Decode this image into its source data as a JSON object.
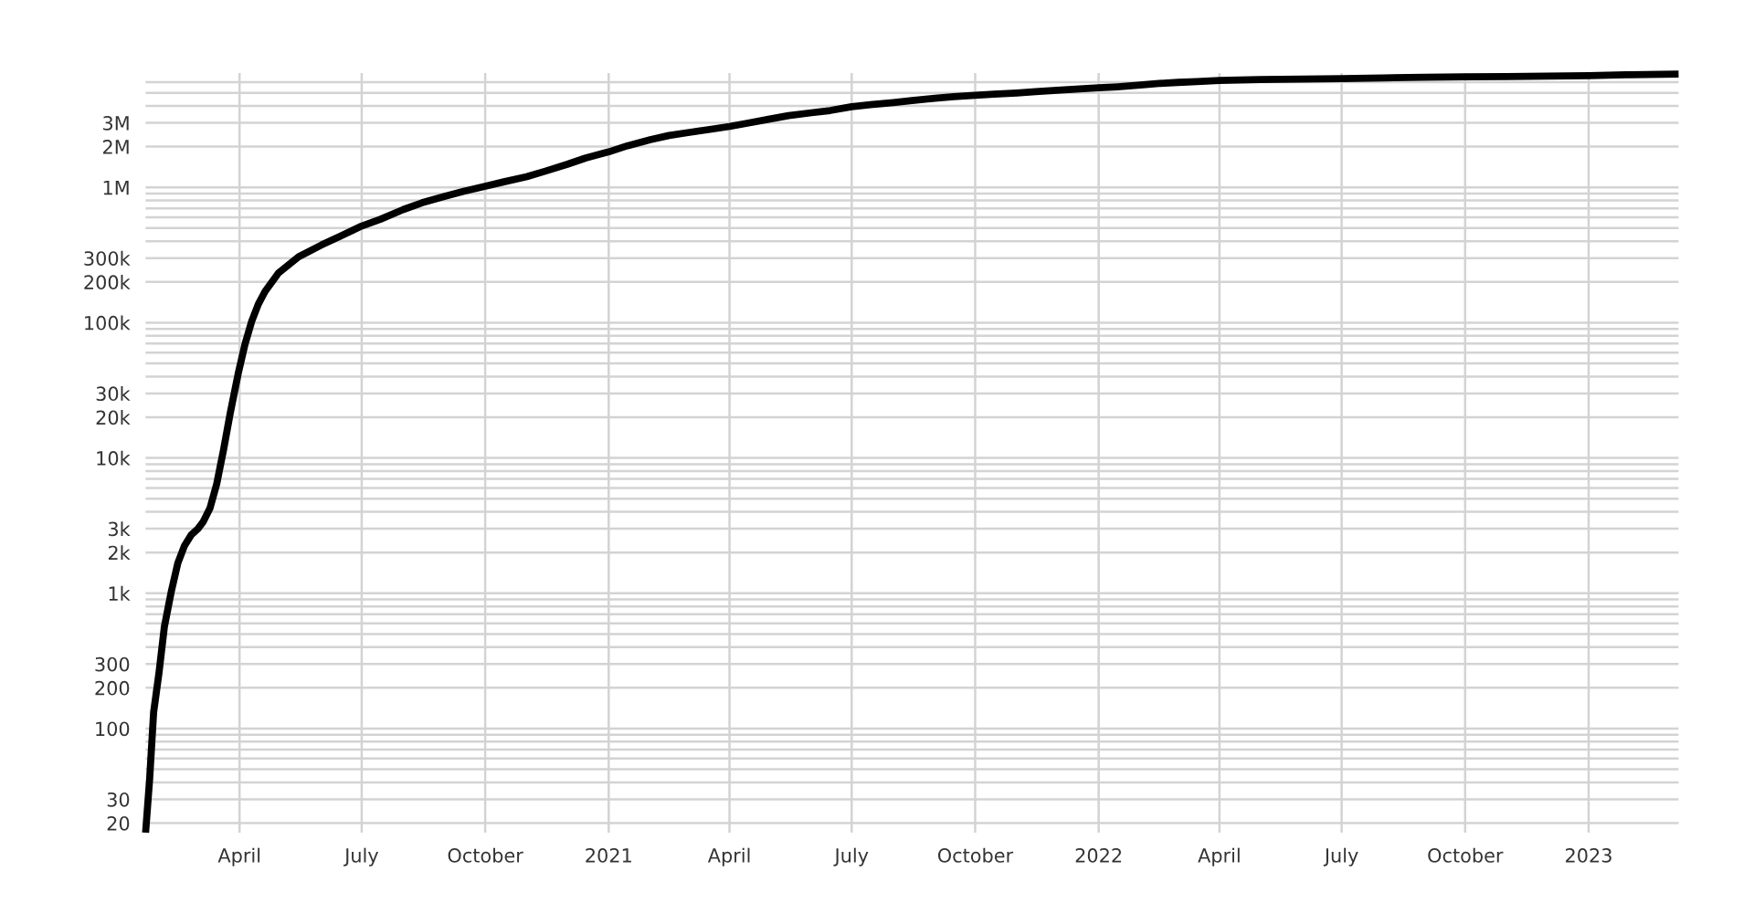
{
  "chart_data": {
    "type": "line",
    "log": "y",
    "grid": true,
    "marker": "none",
    "line_style": "solid",
    "xlim": [
      "2020-01-22",
      "2023-03-09"
    ],
    "xticks": [
      {
        "value": "2020-04-01",
        "label": "April"
      },
      {
        "value": "2020-07-01",
        "label": "July"
      },
      {
        "value": "2020-10-01",
        "label": "October"
      },
      {
        "value": "2021-01-01",
        "label": "2021"
      },
      {
        "value": "2021-04-01",
        "label": "April"
      },
      {
        "value": "2021-07-01",
        "label": "July"
      },
      {
        "value": "2021-10-01",
        "label": "October"
      },
      {
        "value": "2022-01-01",
        "label": "2022"
      },
      {
        "value": "2022-04-01",
        "label": "April"
      },
      {
        "value": "2022-07-01",
        "label": "July"
      },
      {
        "value": "2022-10-01",
        "label": "October"
      },
      {
        "value": "2023-01-01",
        "label": "2023"
      }
    ],
    "ylim": [
      17,
      7000000
    ],
    "yticks": [
      20,
      30,
      {
        "value": 40,
        "label": null
      },
      {
        "value": 50,
        "label": null
      },
      {
        "value": 60,
        "label": null
      },
      {
        "value": 70,
        "label": null
      },
      {
        "value": 80,
        "label": null
      },
      {
        "value": 90,
        "label": null
      },
      100,
      200,
      300,
      {
        "value": 400,
        "label": null
      },
      {
        "value": 500,
        "label": null
      },
      {
        "value": 600,
        "label": null
      },
      {
        "value": 700,
        "label": null
      },
      {
        "value": 800,
        "label": null
      },
      {
        "value": 900,
        "label": null
      },
      {
        "value": 1000,
        "label": "1k"
      },
      {
        "value": 2000,
        "label": "2k"
      },
      {
        "value": 3000,
        "label": "3k"
      },
      {
        "value": 4000,
        "label": null
      },
      {
        "value": 5000,
        "label": null
      },
      {
        "value": 6000,
        "label": null
      },
      {
        "value": 7000,
        "label": null
      },
      {
        "value": 8000,
        "label": null
      },
      {
        "value": 9000,
        "label": null
      },
      {
        "value": 10000,
        "label": "10k"
      },
      {
        "value": 20000,
        "label": "20k"
      },
      {
        "value": 30000,
        "label": "30k"
      },
      {
        "value": 40000,
        "label": null
      },
      {
        "value": 50000,
        "label": null
      },
      {
        "value": 60000,
        "label": null
      },
      {
        "value": 70000,
        "label": null
      },
      {
        "value": 80000,
        "label": null
      },
      {
        "value": 90000,
        "label": null
      },
      {
        "value": 100000,
        "label": "100k"
      },
      {
        "value": 200000,
        "label": "200k"
      },
      {
        "value": 300000,
        "label": "300k"
      },
      {
        "value": 400000,
        "label": null
      },
      {
        "value": 500000,
        "label": null
      },
      {
        "value": 600000,
        "label": null
      },
      {
        "value": 700000,
        "label": null
      },
      {
        "value": 800000,
        "label": null
      },
      {
        "value": 900000,
        "label": null
      },
      {
        "value": 1000000,
        "label": "1M"
      },
      {
        "value": 2000000,
        "label": "2M"
      },
      {
        "value": 3000000,
        "label": "3M"
      },
      {
        "value": 4000000,
        "label": null
      },
      {
        "value": 5000000,
        "label": null
      },
      {
        "value": 6000000,
        "label": null
      }
    ],
    "series": [
      {
        "color": "#000000",
        "x": [
          "2020-01-22",
          "2020-01-25",
          "2020-01-28",
          "2020-02-01",
          "2020-02-05",
          "2020-02-10",
          "2020-02-15",
          "2020-02-20",
          "2020-02-25",
          "2020-03-01",
          "2020-03-05",
          "2020-03-10",
          "2020-03-15",
          "2020-03-20",
          "2020-03-25",
          "2020-03-31",
          "2020-04-05",
          "2020-04-10",
          "2020-04-15",
          "2020-04-20",
          "2020-04-30",
          "2020-05-15",
          "2020-06-01",
          "2020-06-15",
          "2020-07-01",
          "2020-07-15",
          "2020-08-01",
          "2020-08-15",
          "2020-09-01",
          "2020-09-15",
          "2020-10-01",
          "2020-10-15",
          "2020-11-01",
          "2020-11-15",
          "2020-12-01",
          "2020-12-15",
          "2021-01-01",
          "2021-01-15",
          "2021-02-01",
          "2021-02-15",
          "2021-03-01",
          "2021-03-15",
          "2021-04-01",
          "2021-04-15",
          "2021-05-01",
          "2021-05-15",
          "2021-06-01",
          "2021-06-15",
          "2021-07-01",
          "2021-07-15",
          "2021-08-01",
          "2021-08-15",
          "2021-09-01",
          "2021-09-15",
          "2021-10-01",
          "2021-10-15",
          "2021-11-01",
          "2021-11-15",
          "2021-12-01",
          "2021-12-15",
          "2022-01-01",
          "2022-01-15",
          "2022-02-01",
          "2022-02-15",
          "2022-03-01",
          "2022-03-15",
          "2022-04-01",
          "2022-05-01",
          "2022-06-01",
          "2022-07-01",
          "2022-08-01",
          "2022-09-01",
          "2022-10-01",
          "2022-11-01",
          "2022-12-01",
          "2023-01-01",
          "2023-02-01",
          "2023-03-09"
        ],
        "values": [
          17,
          42,
          132,
          259,
          565,
          1013,
          1666,
          2247,
          2700,
          2996,
          3385,
          4262,
          6440,
          11400,
          21300,
          42000,
          69000,
          102000,
          137000,
          170000,
          233000,
          307000,
          375000,
          436000,
          518000,
          582000,
          686000,
          770000,
          860000,
          935000,
          1020000,
          1100000,
          1200000,
          1320000,
          1480000,
          1650000,
          1830000,
          2030000,
          2250000,
          2420000,
          2540000,
          2660000,
          2820000,
          2990000,
          3200000,
          3390000,
          3560000,
          3700000,
          3950000,
          4080000,
          4230000,
          4380000,
          4560000,
          4680000,
          4790000,
          4890000,
          4990000,
          5100000,
          5220000,
          5330000,
          5440000,
          5540000,
          5700000,
          5860000,
          5970000,
          6060000,
          6160000,
          6260000,
          6310000,
          6360000,
          6440000,
          6510000,
          6560000,
          6600000,
          6640000,
          6700000,
          6810000,
          6880000
        ]
      }
    ]
  }
}
